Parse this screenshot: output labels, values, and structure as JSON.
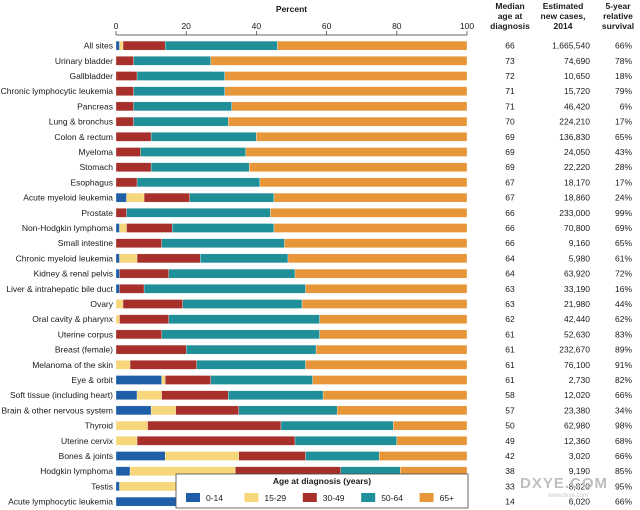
{
  "chart_data": {
    "type": "bar",
    "orientation": "horizontal",
    "stacked": true,
    "title": "Percent",
    "xlim": [
      0,
      100
    ],
    "xticks": [
      "0",
      "20",
      "40",
      "60",
      "80",
      "100"
    ],
    "categories": [
      "All sites",
      "Urinary bladder",
      "Gallbladder",
      "Chronic lymphocytic leukemia",
      "Pancreas",
      "Lung & bronchus",
      "Colon & rectum",
      "Myeloma",
      "Stomach",
      "Esophagus",
      "Acute myeloid leukemia",
      "Prostate",
      "Non-Hodgkin lymphoma",
      "Small intestine",
      "Chronic myeloid leukemia",
      "Kidney & renal pelvis",
      "Liver & intrahepatic bile duct",
      "Ovary",
      "Oral cavity & pharynx",
      "Uterine corpus",
      "Breast (female)",
      "Melanoma of the skin",
      "Eye & orbit",
      "Soft tissue (including heart)",
      "Brain & other nervous system",
      "Thyroid",
      "Uterine cervix",
      "Bones & joints",
      "Hodgkin lymphoma",
      "Testis",
      "Acute lymphocytic leukemia"
    ],
    "series": [
      {
        "name": "0-14",
        "values": [
          1,
          0,
          0,
          0,
          0,
          0,
          0,
          0,
          0,
          0,
          3,
          0,
          1,
          0,
          1,
          1,
          1,
          0,
          0,
          0,
          0,
          0,
          13,
          6,
          10,
          0,
          0,
          14,
          4,
          1,
          52
        ]
      },
      {
        "name": "15-29",
        "values": [
          1,
          0,
          0,
          0,
          0,
          0,
          0,
          0,
          0,
          0,
          5,
          0,
          2,
          0,
          5,
          0,
          0,
          2,
          1,
          0,
          0,
          4,
          1,
          7,
          7,
          9,
          6,
          21,
          30,
          37,
          14
        ]
      },
      {
        "name": "30-49",
        "values": [
          12,
          5,
          6,
          5,
          5,
          5,
          10,
          7,
          10,
          6,
          13,
          3,
          13,
          13,
          18,
          14,
          7,
          17,
          14,
          13,
          20,
          19,
          13,
          19,
          18,
          38,
          45,
          19,
          30,
          49,
          10
        ]
      },
      {
        "name": "50-64",
        "values": [
          32,
          22,
          25,
          26,
          28,
          27,
          30,
          30,
          28,
          35,
          24,
          41,
          29,
          35,
          25,
          36,
          46,
          34,
          43,
          45,
          37,
          31,
          29,
          27,
          28,
          32,
          29,
          21,
          17,
          11,
          12
        ]
      },
      {
        "name": "65+",
        "values": [
          54,
          73,
          69,
          69,
          67,
          68,
          60,
          63,
          62,
          59,
          55,
          56,
          55,
          52,
          51,
          49,
          46,
          47,
          42,
          42,
          43,
          46,
          44,
          41,
          37,
          21,
          20,
          25,
          19,
          2,
          12
        ]
      }
    ],
    "legend": {
      "title": "Age at diagnosis (years)",
      "placement": "bottom"
    },
    "table": {
      "headers": [
        [
          "Median",
          "age at",
          "diagnosis"
        ],
        [
          "Estimated",
          "new cases,",
          "2014"
        ],
        [
          "5-year",
          "relative",
          "survival"
        ]
      ],
      "median_age": [
        "66",
        "73",
        "72",
        "71",
        "71",
        "70",
        "69",
        "69",
        "69",
        "67",
        "67",
        "66",
        "66",
        "66",
        "64",
        "64",
        "63",
        "63",
        "62",
        "61",
        "61",
        "61",
        "61",
        "58",
        "57",
        "50",
        "49",
        "42",
        "38",
        "33",
        "14"
      ],
      "new_cases": [
        "1,665,540",
        "74,690",
        "10,650",
        "15,720",
        "46,420",
        "224,210",
        "136,830",
        "24,050",
        "22,220",
        "18,170",
        "18,860",
        "233,000",
        "70,800",
        "9,160",
        "5,980",
        "63,920",
        "33,190",
        "21,980",
        "42,440",
        "52,630",
        "232,670",
        "76,100",
        "2,730",
        "12,020",
        "23,380",
        "62,980",
        "12,360",
        "3,020",
        "9,190",
        "8,820",
        "6,020"
      ],
      "survival": [
        "66%",
        "78%",
        "18%",
        "79%",
        "6%",
        "17%",
        "65%",
        "43%",
        "28%",
        "17%",
        "24%",
        "99%",
        "69%",
        "65%",
        "61%",
        "72%",
        "16%",
        "44%",
        "62%",
        "83%",
        "89%",
        "91%",
        "82%",
        "66%",
        "34%",
        "98%",
        "68%",
        "66%",
        "85%",
        "95%",
        "66%"
      ]
    }
  },
  "colors": {
    "0-14": "#1f5fa8",
    "15-29": "#f7d77a",
    "30-49": "#a8302a",
    "50-64": "#1f8f99",
    "65+": "#e8963a"
  },
  "watermark": {
    "text": "DXYE.COM",
    "subtext": "www.dxye.com"
  }
}
